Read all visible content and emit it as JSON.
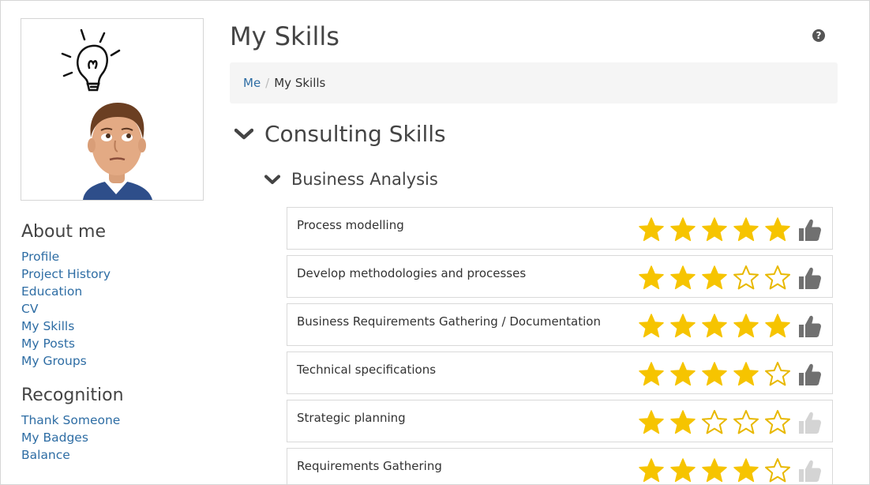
{
  "page": {
    "title": "My Skills"
  },
  "breadcrumb": {
    "parent": "Me",
    "separator": "/",
    "current": "My Skills"
  },
  "sidebar": {
    "about_heading": "About me",
    "about_links": [
      "Profile",
      "Project History",
      "Education",
      "CV",
      "My Skills",
      "My Posts",
      "My Groups"
    ],
    "recognition_heading": "Recognition",
    "recognition_links": [
      "Thank Someone",
      "My Badges",
      "Balance"
    ]
  },
  "section": {
    "title": "Consulting Skills",
    "subsection": {
      "title": "Business Analysis",
      "skills": [
        {
          "name": "Process modelling",
          "rating": 5,
          "max": 5,
          "endorsed": true
        },
        {
          "name": "Develop methodologies and processes",
          "rating": 3,
          "max": 5,
          "endorsed": true
        },
        {
          "name": "Business Requirements Gathering / Documentation",
          "rating": 5,
          "max": 5,
          "endorsed": true
        },
        {
          "name": "Technical specifications",
          "rating": 4,
          "max": 5,
          "endorsed": true
        },
        {
          "name": "Strategic planning",
          "rating": 2,
          "max": 5,
          "endorsed": false
        },
        {
          "name": "Requirements Gathering",
          "rating": 4,
          "max": 5,
          "endorsed": false
        }
      ]
    }
  },
  "icons": {
    "help": "question-circle-icon",
    "chevron": "chevron-down-icon",
    "star": "star-icon",
    "thumb": "thumbs-up-icon",
    "profile_image": "lightbulb-thinking-man-avatar"
  },
  "colors": {
    "link": "#2e6da4",
    "star_filled": "#f6c400",
    "star_outline": "#e8b800",
    "thumb_active": "#707070",
    "thumb_inactive": "#d4d4d4",
    "breadcrumb_bg": "#f5f5f5"
  }
}
